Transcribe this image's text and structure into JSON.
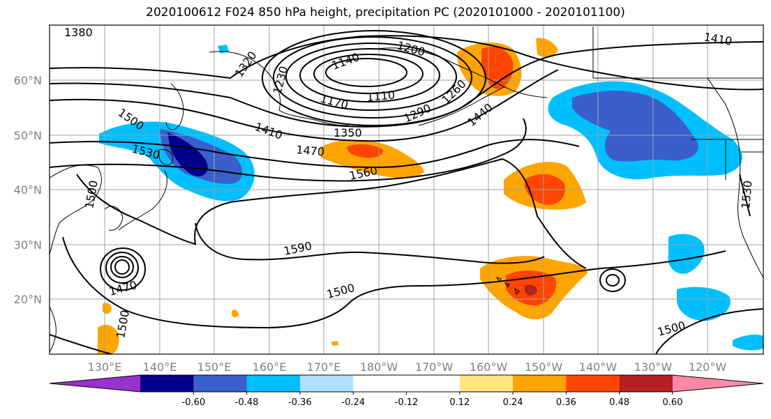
{
  "title": "2020100612 F024 850 hPa height, precipitation PC (2020101000 - 2020101100)",
  "lat_labels": [
    "60°N",
    "50°N",
    "40°N",
    "30°N",
    "20°N"
  ],
  "lon_labels": [
    "130°E",
    "140°E",
    "150°E",
    "160°E",
    "170°E",
    "180°W",
    "170°W",
    "160°W",
    "150°W",
    "140°W",
    "130°W",
    "120°W"
  ],
  "contour_labels": [
    "1380",
    "1320",
    "1140",
    "1200",
    "1410",
    "1170",
    "1110",
    "1290",
    "1260",
    "1230",
    "1500",
    "1530",
    "1410",
    "1350",
    "1470",
    "1440",
    "1560",
    "1590",
    "1470",
    "1500",
    "1500",
    "1500",
    "1530",
    "1500"
  ],
  "colorbar": {
    "colors": [
      "#9932cc",
      "#00008b",
      "#3a5fcd",
      "#00bfff",
      "#b0e2ff",
      "#ffffff",
      "#ffffff",
      "#ffe680",
      "#ffa500",
      "#ff4500",
      "#b22222",
      "#ff88aa"
    ],
    "tick_labels": [
      "-0.60",
      "-0.48",
      "-0.36",
      "-0.24",
      "-0.12",
      "0.12",
      "0.24",
      "0.36",
      "0.48",
      "0.60"
    ]
  },
  "colors": {
    "frame": "#000000",
    "grid": "#a0a0a0",
    "contour": "#000000",
    "coast": "#000000"
  }
}
